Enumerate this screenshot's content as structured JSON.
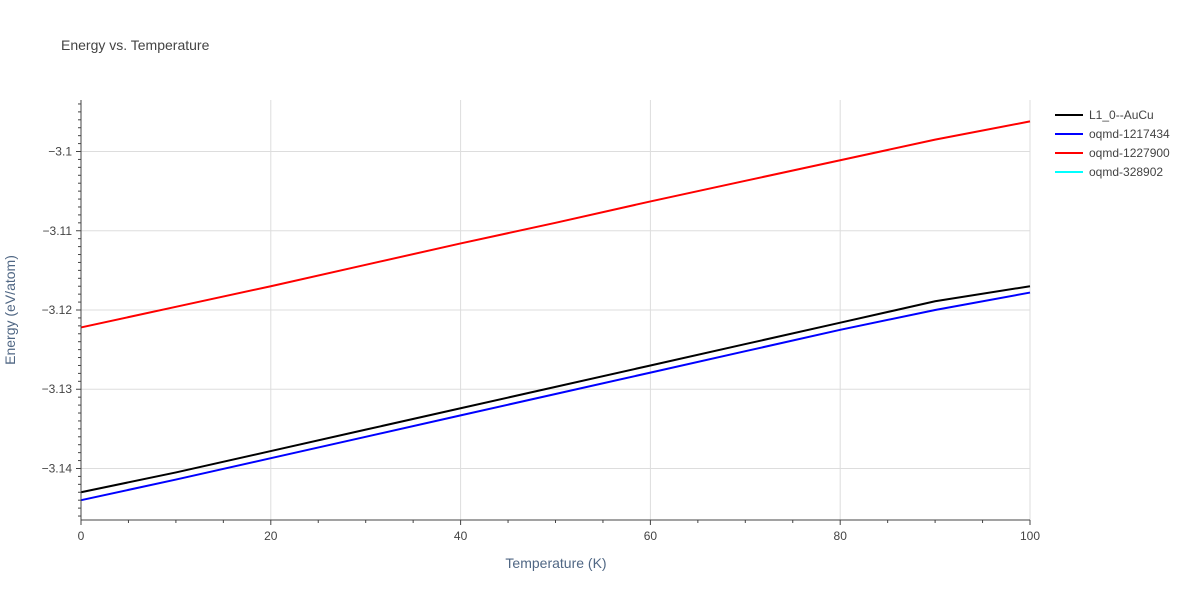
{
  "chart_data": {
    "type": "line",
    "title": "Energy vs. Temperature",
    "xlabel": "Temperature (K)",
    "ylabel": "Energy (eV/atom)",
    "xlim": [
      0,
      100
    ],
    "ylim": [
      -3.1465,
      -3.0935
    ],
    "x_ticks": [
      0,
      20,
      40,
      60,
      80,
      100
    ],
    "x_tick_labels": [
      "0",
      "20",
      "40",
      "60",
      "80",
      "100"
    ],
    "y_ticks": [
      -3.14,
      -3.13,
      -3.12,
      -3.11,
      -3.1
    ],
    "y_tick_labels": [
      "−3.14",
      "−3.13",
      "−3.12",
      "−3.11",
      "−3.1"
    ],
    "grid": true,
    "legend_position": "top-right",
    "series": [
      {
        "name": "L1_0--AuCu",
        "color": "#000000",
        "x": [
          0,
          10,
          20,
          30,
          40,
          50,
          60,
          70,
          80,
          90,
          100
        ],
        "y": [
          -3.143,
          -3.1405,
          -3.1378,
          -3.1351,
          -3.1324,
          -3.1297,
          -3.127,
          -3.1243,
          -3.1216,
          -3.1189,
          -3.117
        ]
      },
      {
        "name": "oqmd-1217434",
        "color": "#0000ff",
        "x": [
          0,
          10,
          20,
          30,
          40,
          50,
          60,
          70,
          80,
          90,
          100
        ],
        "y": [
          -3.144,
          -3.1414,
          -3.1387,
          -3.136,
          -3.1333,
          -3.1306,
          -3.1279,
          -3.1252,
          -3.1225,
          -3.12,
          -3.1178
        ]
      },
      {
        "name": "oqmd-1227900",
        "color": "#ff0000",
        "x": [
          0,
          10,
          20,
          30,
          40,
          50,
          60,
          70,
          80,
          90,
          100
        ],
        "y": [
          -3.1222,
          -3.1196,
          -3.117,
          -3.1143,
          -3.1116,
          -3.109,
          -3.1063,
          -3.1037,
          -3.1011,
          -3.0985,
          -3.0962
        ]
      },
      {
        "name": "oqmd-328902",
        "color": "#00ffff",
        "x": [],
        "y": []
      }
    ]
  }
}
